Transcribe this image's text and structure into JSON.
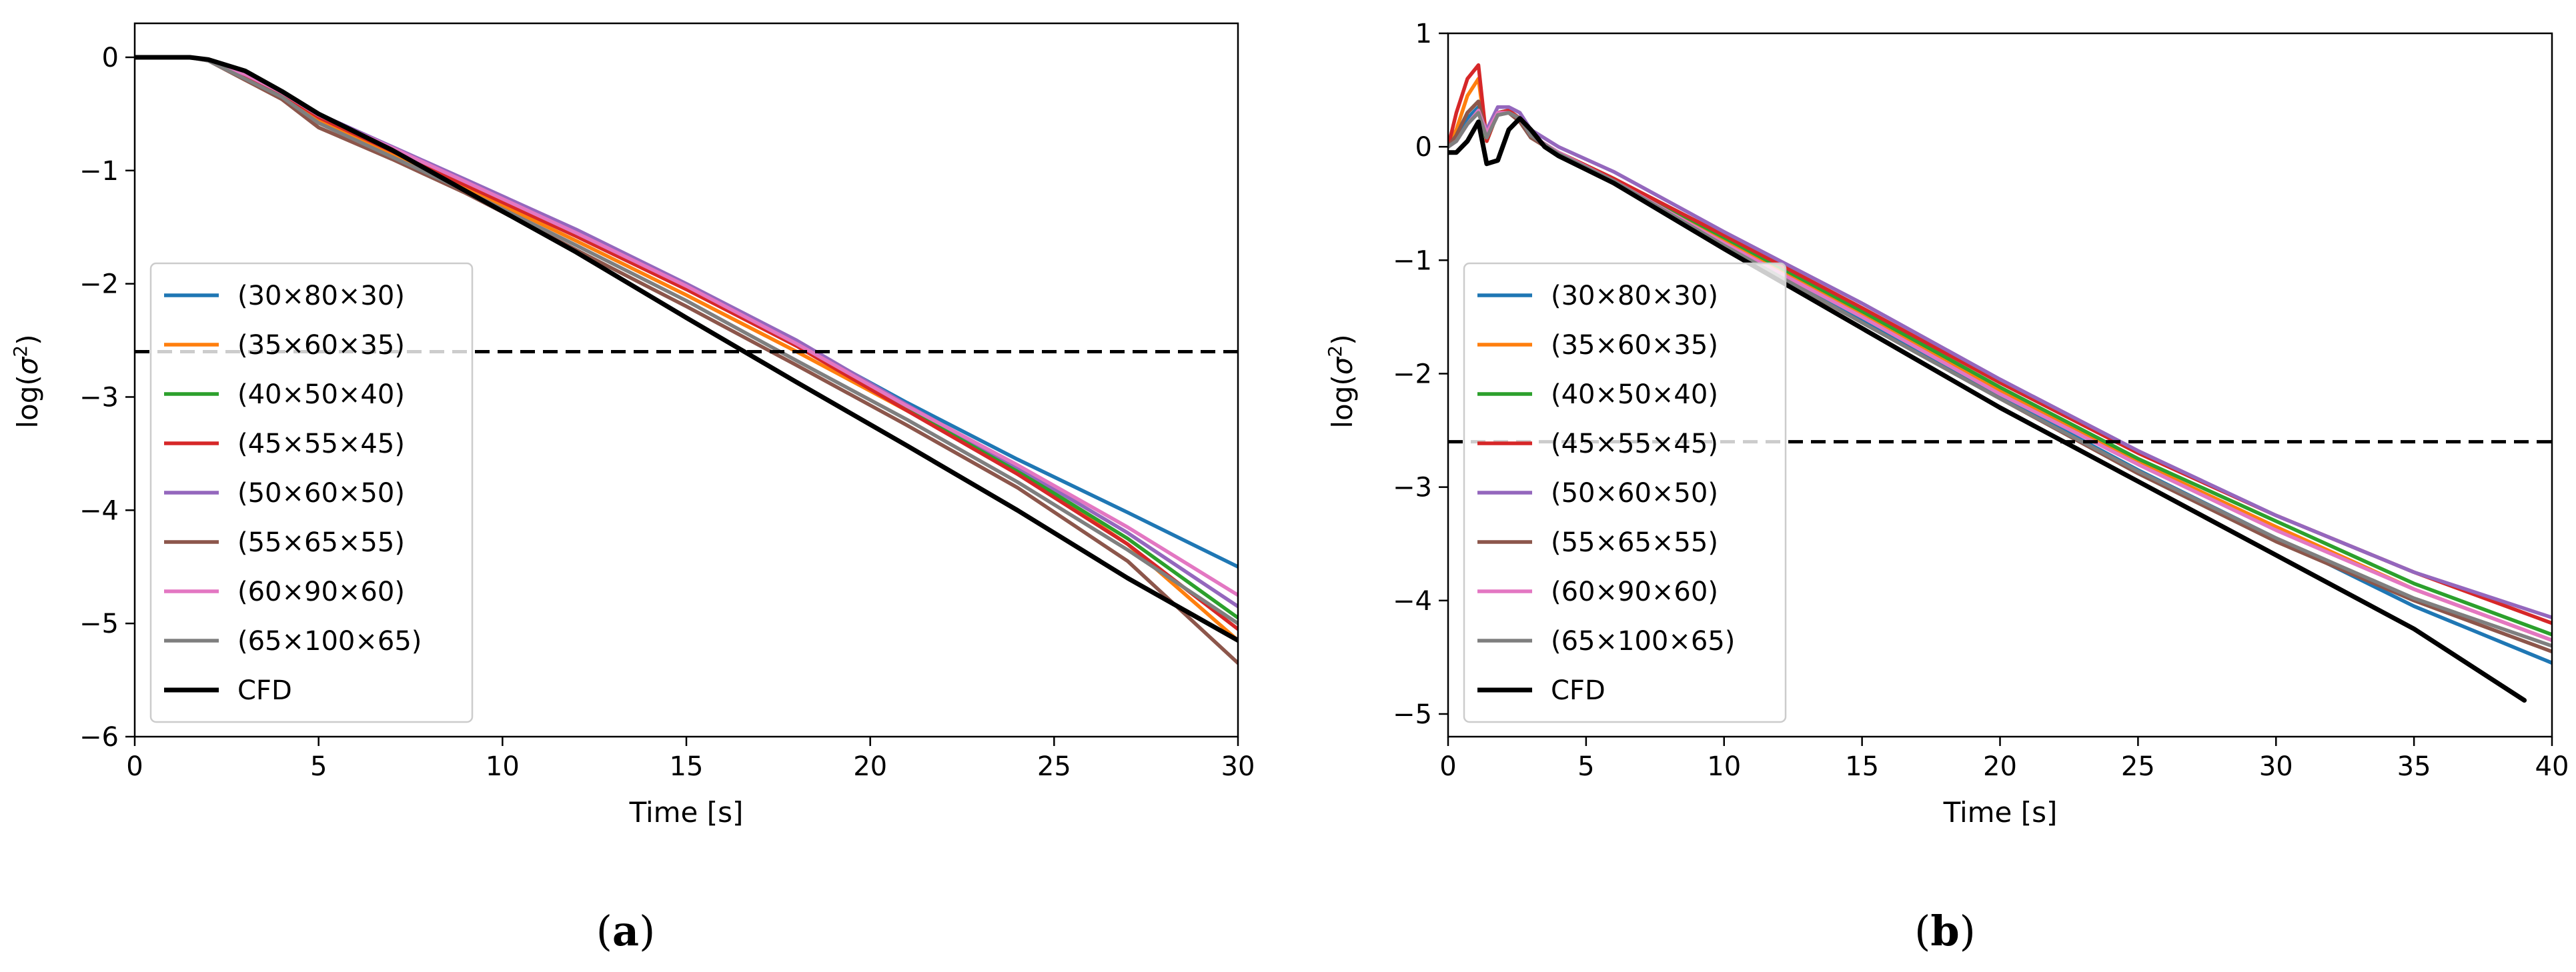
{
  "chart_data": [
    {
      "type": "line",
      "panel_label": "a",
      "xlabel": "Time [s]",
      "ylabel_main": "log(",
      "ylabel_sigma": "σ",
      "ylabel_sup": "2",
      "ylabel_close": ")",
      "xlim": [
        0,
        30
      ],
      "ylim": [
        -6,
        0.3
      ],
      "xticks": [
        0,
        5,
        10,
        15,
        20,
        25,
        30
      ],
      "yticks": [
        0,
        -1,
        -2,
        -3,
        -4,
        -5,
        -6
      ],
      "threshold": -2.6,
      "legend_position": "center-left",
      "series": [
        {
          "name": "(30×80×30)",
          "color": "#1f77b4",
          "x": [
            0,
            1.5,
            2,
            3,
            4,
            5,
            7,
            9,
            12,
            15,
            18,
            21,
            24,
            27,
            30
          ],
          "y": [
            0,
            0,
            -0.02,
            -0.15,
            -0.3,
            -0.5,
            -0.8,
            -1.1,
            -1.55,
            -2.02,
            -2.52,
            -3.05,
            -3.55,
            -4.02,
            -4.5
          ]
        },
        {
          "name": "(35×60×35)",
          "color": "#ff7f0e",
          "x": [
            0,
            1.5,
            2,
            3,
            4,
            5,
            7,
            9,
            12,
            15,
            18,
            21,
            24,
            27,
            30
          ],
          "y": [
            0,
            0,
            -0.02,
            -0.17,
            -0.33,
            -0.55,
            -0.85,
            -1.15,
            -1.62,
            -2.1,
            -2.6,
            -3.12,
            -3.65,
            -4.3,
            -5.15
          ]
        },
        {
          "name": "(40×50×40)",
          "color": "#2ca02c",
          "x": [
            0,
            1.5,
            2,
            3,
            4,
            5,
            7,
            9,
            12,
            15,
            18,
            21,
            24,
            27,
            30
          ],
          "y": [
            0,
            0,
            -0.02,
            -0.16,
            -0.31,
            -0.52,
            -0.82,
            -1.12,
            -1.57,
            -2.04,
            -2.53,
            -3.1,
            -3.65,
            -4.25,
            -4.95
          ]
        },
        {
          "name": "(45×55×45)",
          "color": "#d62728",
          "x": [
            0,
            1.5,
            2,
            3,
            4,
            5,
            7,
            9,
            12,
            15,
            18,
            21,
            24,
            27,
            30
          ],
          "y": [
            0,
            0,
            -0.02,
            -0.16,
            -0.32,
            -0.53,
            -0.83,
            -1.13,
            -1.58,
            -2.05,
            -2.55,
            -3.12,
            -3.68,
            -4.3,
            -5.05
          ]
        },
        {
          "name": "(50×60×50)",
          "color": "#9467bd",
          "x": [
            0,
            1.5,
            2,
            3,
            4,
            5,
            7,
            9,
            12,
            15,
            18,
            21,
            24,
            27,
            30
          ],
          "y": [
            0,
            0,
            -0.02,
            -0.15,
            -0.3,
            -0.5,
            -0.79,
            -1.08,
            -1.52,
            -2.0,
            -2.5,
            -3.07,
            -3.62,
            -4.2,
            -4.85
          ]
        },
        {
          "name": "(55×65×55)",
          "color": "#8c564b",
          "x": [
            0,
            1.5,
            2,
            3,
            4,
            5,
            7,
            9,
            12,
            15,
            18,
            21,
            24,
            27,
            30
          ],
          "y": [
            0,
            0,
            -0.03,
            -0.2,
            -0.37,
            -0.62,
            -0.9,
            -1.2,
            -1.7,
            -2.2,
            -2.72,
            -3.25,
            -3.8,
            -4.45,
            -5.35
          ]
        },
        {
          "name": "(60×90×60)",
          "color": "#e377c2",
          "x": [
            0,
            1.5,
            2,
            3,
            4,
            5,
            7,
            9,
            12,
            15,
            18,
            21,
            24,
            27,
            30
          ],
          "y": [
            0,
            0,
            -0.02,
            -0.15,
            -0.31,
            -0.51,
            -0.8,
            -1.1,
            -1.55,
            -2.02,
            -2.53,
            -3.08,
            -3.6,
            -4.15,
            -4.75
          ]
        },
        {
          "name": "(65×100×65)",
          "color": "#7f7f7f",
          "x": [
            0,
            1.5,
            2,
            3,
            4,
            5,
            7,
            9,
            12,
            15,
            18,
            21,
            24,
            27,
            30
          ],
          "y": [
            0,
            0,
            -0.03,
            -0.19,
            -0.35,
            -0.58,
            -0.88,
            -1.18,
            -1.66,
            -2.15,
            -2.68,
            -3.2,
            -3.75,
            -4.35,
            -5.0
          ]
        },
        {
          "name": "CFD",
          "color": "#000000",
          "x": [
            0,
            1.5,
            2,
            3,
            4,
            5,
            7,
            9,
            12,
            15,
            18,
            21,
            24,
            27,
            30
          ],
          "y": [
            0,
            0,
            -0.02,
            -0.12,
            -0.3,
            -0.5,
            -0.82,
            -1.18,
            -1.72,
            -2.3,
            -2.87,
            -3.43,
            -4.0,
            -4.6,
            -5.15
          ]
        }
      ]
    },
    {
      "type": "line",
      "panel_label": "b",
      "xlabel": "Time [s]",
      "ylabel_main": "log(",
      "ylabel_sigma": "σ",
      "ylabel_sup": "2",
      "ylabel_close": ")",
      "xlim": [
        0,
        40
      ],
      "ylim": [
        -5.2,
        1.0
      ],
      "xticks": [
        0,
        5,
        10,
        15,
        20,
        25,
        30,
        35,
        40
      ],
      "yticks": [
        1,
        0,
        -1,
        -2,
        -3,
        -4,
        -5
      ],
      "threshold": -2.6,
      "legend_position": "center-left",
      "series": [
        {
          "name": "(30×80×30)",
          "color": "#1f77b4",
          "x": [
            0,
            0.3,
            0.7,
            1.1,
            1.4,
            1.8,
            2.2,
            2.6,
            3,
            4,
            6,
            10,
            15,
            20,
            25,
            30,
            35,
            40
          ],
          "y": [
            0,
            0.05,
            0.25,
            0.35,
            0.1,
            0.3,
            0.32,
            0.25,
            0.1,
            -0.05,
            -0.3,
            -0.85,
            -1.52,
            -2.2,
            -2.85,
            -3.45,
            -4.05,
            -4.55
          ]
        },
        {
          "name": "(35×60×35)",
          "color": "#ff7f0e",
          "x": [
            0,
            0.3,
            0.7,
            1.1,
            1.4,
            1.8,
            2.2,
            2.6,
            3,
            4,
            6,
            10,
            15,
            20,
            25,
            30,
            35,
            40
          ],
          "y": [
            0,
            0.15,
            0.45,
            0.6,
            0.05,
            0.3,
            0.3,
            0.25,
            0.08,
            -0.05,
            -0.3,
            -0.82,
            -1.48,
            -2.15,
            -2.78,
            -3.35,
            -3.9,
            -4.35
          ]
        },
        {
          "name": "(40×50×40)",
          "color": "#2ca02c",
          "x": [
            0,
            0.3,
            0.7,
            1.1,
            1.4,
            1.8,
            2.2,
            2.6,
            3,
            4,
            6,
            10,
            15,
            20,
            25,
            30,
            35,
            40
          ],
          "y": [
            0,
            0.1,
            0.3,
            0.4,
            0.05,
            0.3,
            0.32,
            0.25,
            0.1,
            -0.05,
            -0.28,
            -0.8,
            -1.45,
            -2.12,
            -2.75,
            -3.3,
            -3.85,
            -4.3
          ]
        },
        {
          "name": "(45×55×45)",
          "color": "#d62728",
          "x": [
            0,
            0.3,
            0.7,
            1.1,
            1.4,
            1.8,
            2.2,
            2.6,
            3,
            4,
            6,
            10,
            15,
            20,
            25,
            30,
            35,
            40
          ],
          "y": [
            0,
            0.3,
            0.6,
            0.72,
            0.05,
            0.3,
            0.32,
            0.25,
            0.1,
            -0.05,
            -0.28,
            -0.78,
            -1.42,
            -2.08,
            -2.7,
            -3.25,
            -3.75,
            -4.2
          ]
        },
        {
          "name": "(50×60×50)",
          "color": "#9467bd",
          "x": [
            0,
            0.3,
            0.7,
            1.1,
            1.4,
            1.8,
            2.2,
            2.6,
            3,
            4,
            6,
            10,
            15,
            20,
            25,
            30,
            35,
            40
          ],
          "y": [
            0,
            0.05,
            0.2,
            0.3,
            0.15,
            0.35,
            0.35,
            0.3,
            0.15,
            0,
            -0.22,
            -0.75,
            -1.38,
            -2.05,
            -2.68,
            -3.25,
            -3.75,
            -4.15
          ]
        },
        {
          "name": "(55×65×55)",
          "color": "#8c564b",
          "x": [
            0,
            0.3,
            0.7,
            1.1,
            1.4,
            1.8,
            2.2,
            2.6,
            3,
            4,
            6,
            10,
            15,
            20,
            25,
            30,
            35,
            40
          ],
          "y": [
            0,
            0.1,
            0.3,
            0.4,
            0.08,
            0.28,
            0.3,
            0.22,
            0.08,
            -0.07,
            -0.32,
            -0.88,
            -1.55,
            -2.22,
            -2.88,
            -3.48,
            -4.0,
            -4.45
          ]
        },
        {
          "name": "(60×90×60)",
          "color": "#e377c2",
          "x": [
            0,
            0.3,
            0.7,
            1.1,
            1.4,
            1.8,
            2.2,
            2.6,
            3,
            4,
            6,
            10,
            15,
            20,
            25,
            30,
            35,
            40
          ],
          "y": [
            0,
            0.05,
            0.2,
            0.32,
            0.12,
            0.3,
            0.3,
            0.25,
            0.1,
            -0.05,
            -0.3,
            -0.85,
            -1.5,
            -2.18,
            -2.8,
            -3.38,
            -3.9,
            -4.35
          ]
        },
        {
          "name": "(65×100×65)",
          "color": "#7f7f7f",
          "x": [
            0,
            0.3,
            0.7,
            1.1,
            1.4,
            1.8,
            2.2,
            2.6,
            3,
            4,
            6,
            10,
            15,
            20,
            25,
            30,
            35,
            40
          ],
          "y": [
            0,
            0.05,
            0.2,
            0.3,
            0.08,
            0.28,
            0.3,
            0.25,
            0.1,
            -0.06,
            -0.3,
            -0.87,
            -1.55,
            -2.22,
            -2.86,
            -3.45,
            -3.98,
            -4.4
          ]
        },
        {
          "name": "CFD",
          "color": "#000000",
          "x": [
            0,
            0.3,
            0.7,
            1.1,
            1.4,
            1.8,
            2.2,
            2.6,
            3,
            3.5,
            4,
            6,
            10,
            15,
            20,
            25,
            30,
            35,
            39
          ],
          "y": [
            -0.05,
            -0.05,
            0.05,
            0.22,
            -0.15,
            -0.12,
            0.15,
            0.25,
            0.15,
            0,
            -0.08,
            -0.32,
            -0.9,
            -1.6,
            -2.3,
            -2.95,
            -3.6,
            -4.25,
            -4.88
          ]
        }
      ]
    }
  ]
}
